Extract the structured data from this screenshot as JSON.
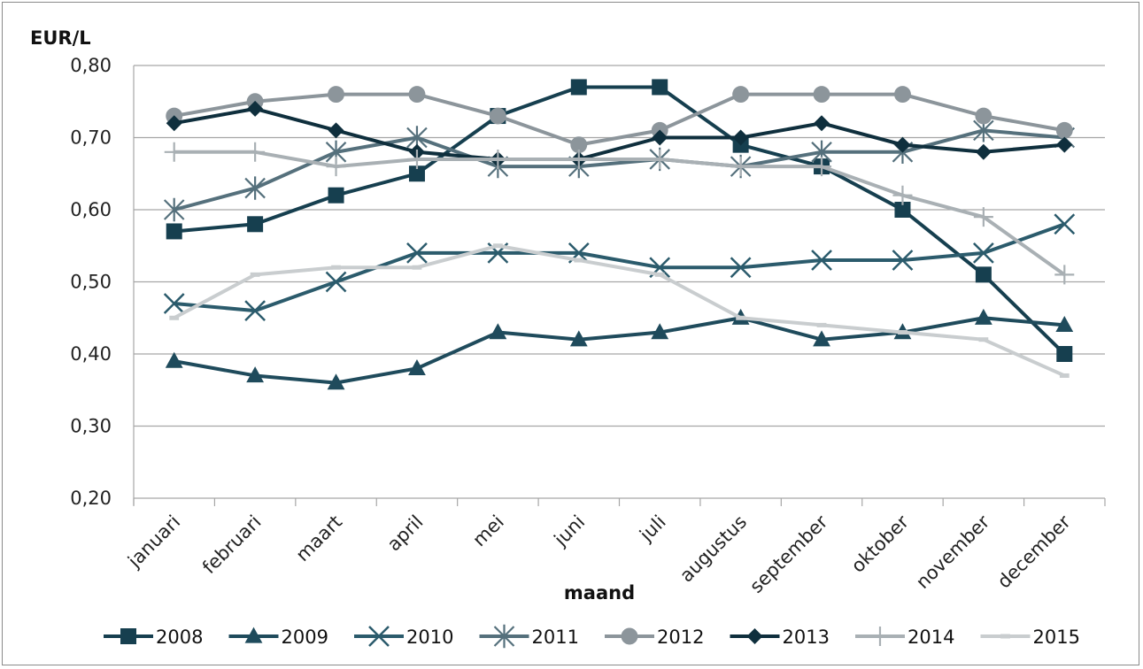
{
  "chart_data": {
    "type": "line",
    "ylabel": "EUR/L",
    "xlabel": "maand",
    "ylim": [
      0.2,
      0.8
    ],
    "yticks": [
      "0,20",
      "0,30",
      "0,40",
      "0,50",
      "0,60",
      "0,70",
      "0,80"
    ],
    "ytick_values": [
      0.2,
      0.3,
      0.4,
      0.5,
      0.6,
      0.7,
      0.8
    ],
    "grid": true,
    "legend_position": "bottom",
    "categories": [
      "januari",
      "februari",
      "maart",
      "april",
      "mei",
      "juni",
      "juli",
      "augustus",
      "september",
      "oktober",
      "november",
      "december"
    ],
    "series": [
      {
        "name": "2008",
        "marker": "square",
        "color": "#163f4f",
        "values": [
          0.57,
          0.58,
          0.62,
          0.65,
          0.73,
          0.77,
          0.77,
          0.69,
          0.66,
          0.6,
          0.51,
          0.4
        ]
      },
      {
        "name": "2009",
        "marker": "triangle",
        "color": "#1f4b5c",
        "values": [
          0.39,
          0.37,
          0.36,
          0.38,
          0.43,
          0.42,
          0.43,
          0.45,
          0.42,
          0.43,
          0.45,
          0.44
        ]
      },
      {
        "name": "2010",
        "marker": "x",
        "color": "#2b5b6c",
        "values": [
          0.47,
          0.46,
          0.5,
          0.54,
          0.54,
          0.54,
          0.52,
          0.52,
          0.53,
          0.53,
          0.54,
          0.58
        ]
      },
      {
        "name": "2011",
        "marker": "star",
        "color": "#55707c",
        "values": [
          0.6,
          0.63,
          0.68,
          0.7,
          0.66,
          0.66,
          0.67,
          0.66,
          0.68,
          0.68,
          0.71,
          0.7
        ]
      },
      {
        "name": "2012",
        "marker": "circle",
        "color": "#8c959b",
        "values": [
          0.73,
          0.75,
          0.76,
          0.76,
          0.73,
          0.69,
          0.71,
          0.76,
          0.76,
          0.76,
          0.73,
          0.71
        ]
      },
      {
        "name": "2013",
        "marker": "diamond",
        "color": "#0f2f3d",
        "values": [
          0.72,
          0.74,
          0.71,
          0.68,
          0.67,
          0.67,
          0.7,
          0.7,
          0.72,
          0.69,
          0.68,
          0.69
        ]
      },
      {
        "name": "2014",
        "marker": "plus",
        "color": "#a9b0b4",
        "values": [
          0.68,
          0.68,
          0.66,
          0.67,
          0.67,
          0.67,
          0.67,
          0.66,
          0.66,
          0.62,
          0.59,
          0.51
        ]
      },
      {
        "name": "2015",
        "marker": "dash",
        "color": "#c9cdcf",
        "values": [
          0.45,
          0.51,
          0.52,
          0.52,
          0.55,
          0.53,
          0.51,
          0.45,
          0.44,
          0.43,
          0.42,
          0.37
        ]
      }
    ]
  }
}
